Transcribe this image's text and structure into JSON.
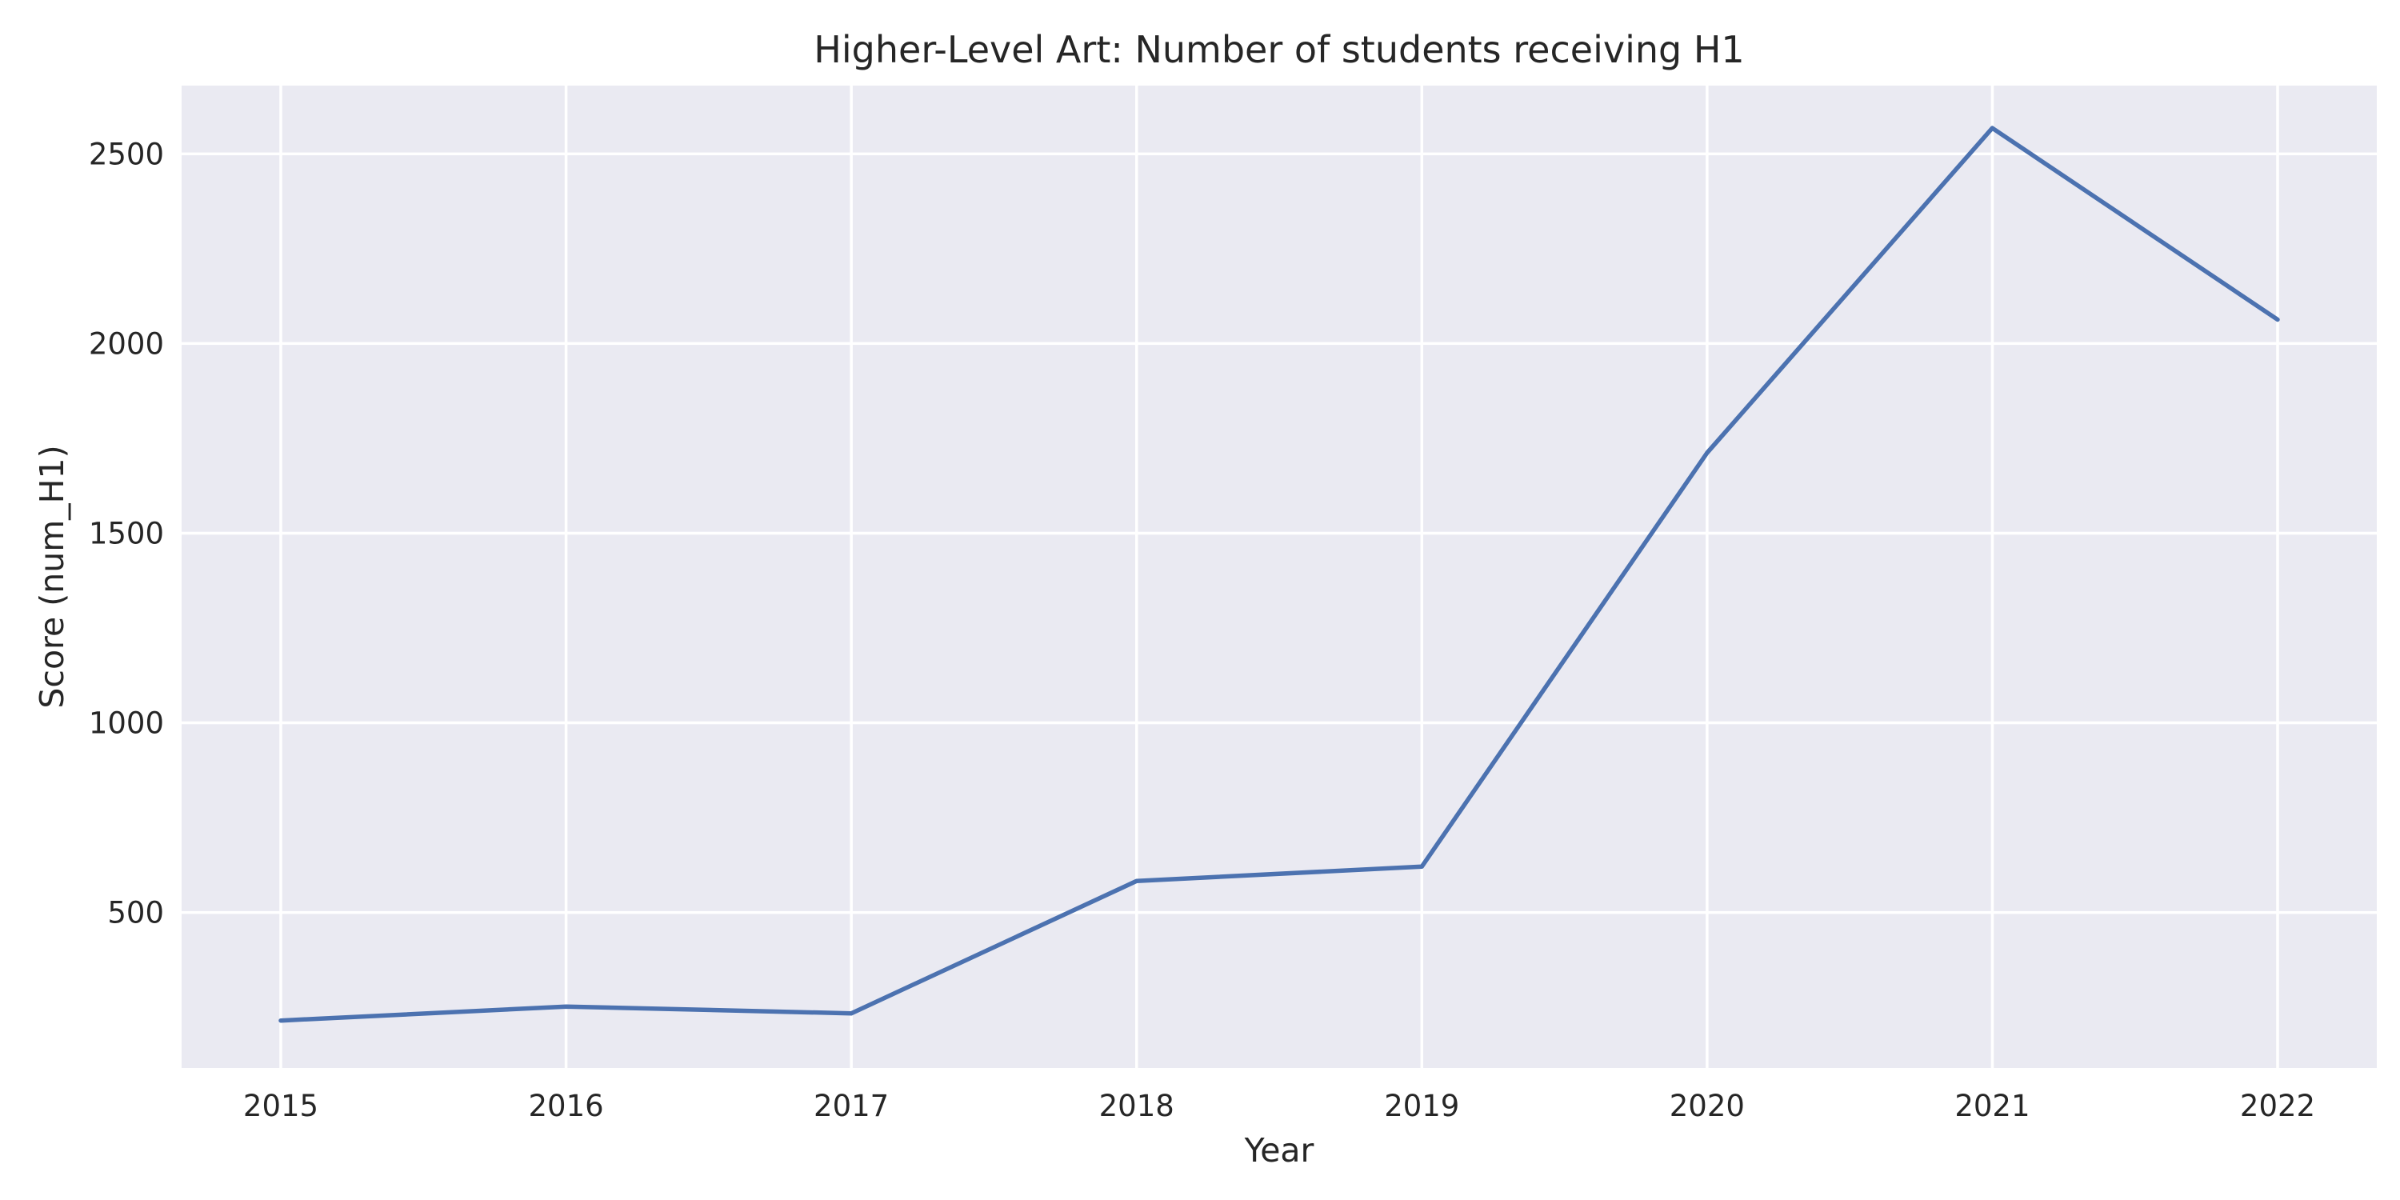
{
  "chart_data": {
    "type": "line",
    "title": "Higher-Level Art: Number of students receiving H1",
    "xlabel": "Year",
    "ylabel": "Score (num_H1)",
    "x": [
      "2015",
      "2016",
      "2017",
      "2018",
      "2019",
      "2020",
      "2021",
      "2022"
    ],
    "series": [
      {
        "values": [
          215,
          252,
          234,
          583,
          621,
          1712,
          2568,
          2063
        ]
      }
    ],
    "yticks": [
      500,
      1000,
      1500,
      2000,
      2500
    ],
    "ylim": [
      90,
      2680
    ],
    "grid": true,
    "legend": "none",
    "colors": {
      "background": "#EAEAF2",
      "line": "#4C72B0",
      "grid": "#FFFFFF",
      "text": "#262626"
    }
  }
}
